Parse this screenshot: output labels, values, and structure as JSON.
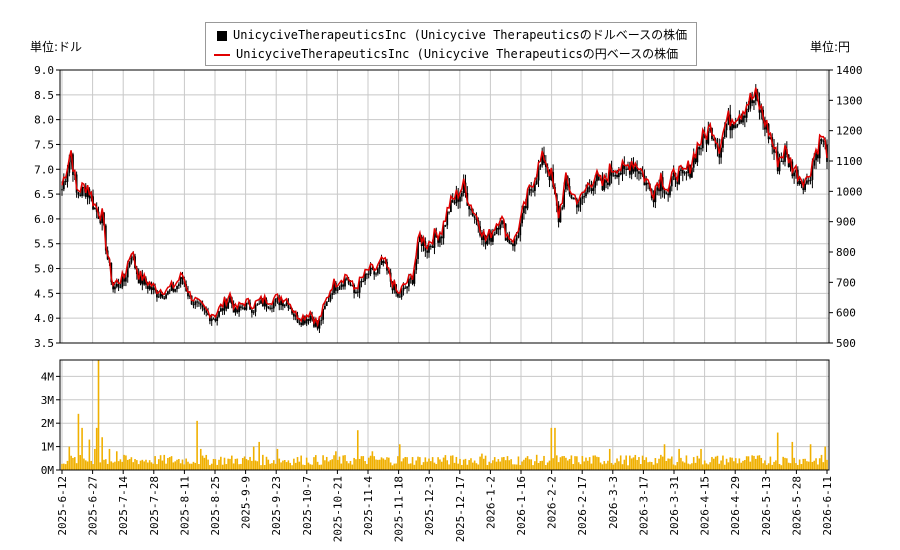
{
  "units": {
    "left": "単位:ドル",
    "right": "単位:円"
  },
  "legend": {
    "usd": "UnicyciveTherapeuticsInc (Unicycive Therapeuticsのドルベースの株価",
    "jpy": "UnicyciveTherapeuticsInc (Unicycive Therapeuticsの円ベースの株価"
  },
  "colors": {
    "candle": "#000000",
    "jpy_line": "#e00000",
    "volume": "#f0b000",
    "grid": "#c8c8c8"
  },
  "chart_data": [
    {
      "type": "line",
      "series": [
        {
          "name": "UnicyciveTherapeuticsInc (Unicycive Therapeuticsのドルベースの株価",
          "axis": "left",
          "style": "candlestick"
        },
        {
          "name": "UnicyciveTherapeuticsInc (Unicycive Therapeuticsの円ベースの株価",
          "axis": "right",
          "style": "line"
        }
      ],
      "x_ticks": [
        "2025-6-12",
        "2025-6-27",
        "2025-7-14",
        "2025-7-28",
        "2025-8-11",
        "2025-8-25",
        "2025-9-9",
        "2025-9-23",
        "2025-10-7",
        "2025-10-21",
        "2025-11-4",
        "2025-11-18",
        "2025-12-3",
        "2025-12-17",
        "2026-1-2",
        "2026-1-16",
        "2026-2-2",
        "2026-2-17",
        "2026-3-3",
        "2026-3-17",
        "2026-3-31",
        "2026-4-15",
        "2026-4-29",
        "2026-5-13",
        "2026-5-28",
        "2026-6-11"
      ],
      "y_left_ticks": [
        "3.5",
        "4.0",
        "4.5",
        "5.0",
        "5.5",
        "6.0",
        "6.5",
        "7.0",
        "7.5",
        "8.0",
        "8.5",
        "9.0"
      ],
      "y_left_range": [
        3.5,
        9.0
      ],
      "y_right_ticks": [
        "500",
        "600",
        "700",
        "800",
        "900",
        "1000",
        "1100",
        "1200",
        "1300",
        "1400"
      ],
      "y_right_range": [
        500,
        1400
      ],
      "anchors_usd": [
        [
          0,
          6.6
        ],
        [
          5,
          7.3
        ],
        [
          8,
          6.5
        ],
        [
          14,
          6.6
        ],
        [
          18,
          6.2
        ],
        [
          22,
          6.0
        ],
        [
          25,
          5.2
        ],
        [
          28,
          4.6
        ],
        [
          34,
          4.75
        ],
        [
          38,
          5.3
        ],
        [
          42,
          4.8
        ],
        [
          47,
          4.65
        ],
        [
          52,
          4.5
        ],
        [
          58,
          4.5
        ],
        [
          62,
          4.6
        ],
        [
          66,
          4.8
        ],
        [
          70,
          4.4
        ],
        [
          75,
          4.2
        ],
        [
          80,
          4.05
        ],
        [
          84,
          4.0
        ],
        [
          88,
          4.2
        ],
        [
          92,
          4.4
        ],
        [
          95,
          4.1
        ],
        [
          100,
          4.25
        ],
        [
          105,
          4.2
        ],
        [
          110,
          4.3
        ],
        [
          115,
          4.3
        ],
        [
          120,
          4.35
        ],
        [
          124,
          4.3
        ],
        [
          128,
          4.0
        ],
        [
          132,
          3.95
        ],
        [
          136,
          4.05
        ],
        [
          140,
          3.8
        ],
        [
          144,
          4.2
        ],
        [
          148,
          4.6
        ],
        [
          152,
          4.7
        ],
        [
          156,
          4.8
        ],
        [
          160,
          4.5
        ],
        [
          164,
          4.7
        ],
        [
          168,
          4.9
        ],
        [
          172,
          4.9
        ],
        [
          176,
          5.1
        ],
        [
          180,
          4.75
        ],
        [
          184,
          4.4
        ],
        [
          188,
          4.6
        ],
        [
          192,
          4.8
        ],
        [
          196,
          5.6
        ],
        [
          200,
          5.4
        ],
        [
          204,
          5.6
        ],
        [
          208,
          5.7
        ],
        [
          212,
          6.2
        ],
        [
          216,
          6.4
        ],
        [
          220,
          6.6
        ],
        [
          224,
          6.2
        ],
        [
          228,
          5.9
        ],
        [
          232,
          5.5
        ],
        [
          236,
          5.7
        ],
        [
          240,
          6.0
        ],
        [
          244,
          5.6
        ],
        [
          248,
          5.5
        ],
        [
          252,
          6.0
        ],
        [
          256,
          6.5
        ],
        [
          260,
          6.9
        ],
        [
          264,
          7.2
        ],
        [
          268,
          6.8
        ],
        [
          272,
          6.0
        ],
        [
          276,
          6.7
        ],
        [
          280,
          6.4
        ],
        [
          284,
          6.3
        ],
        [
          288,
          6.6
        ],
        [
          292,
          6.8
        ],
        [
          296,
          6.6
        ],
        [
          300,
          6.9
        ],
        [
          304,
          7.0
        ],
        [
          308,
          6.9
        ],
        [
          312,
          7.1
        ],
        [
          316,
          7.0
        ],
        [
          320,
          6.7
        ],
        [
          324,
          6.5
        ],
        [
          328,
          6.8
        ],
        [
          332,
          6.5
        ],
        [
          336,
          6.9
        ],
        [
          340,
          6.8
        ],
        [
          344,
          7.0
        ],
        [
          348,
          7.4
        ],
        [
          352,
          7.6
        ],
        [
          356,
          7.8
        ],
        [
          360,
          7.4
        ],
        [
          364,
          7.9
        ],
        [
          368,
          8.0
        ],
        [
          372,
          8.1
        ],
        [
          376,
          8.3
        ],
        [
          380,
          8.4
        ],
        [
          384,
          8.0
        ],
        [
          388,
          7.6
        ],
        [
          392,
          7.1
        ],
        [
          396,
          7.3
        ],
        [
          400,
          7.0
        ],
        [
          404,
          6.8
        ],
        [
          408,
          6.7
        ],
        [
          412,
          7.2
        ],
        [
          416,
          7.6
        ],
        [
          419,
          7.3
        ]
      ],
      "n_days": 420
    },
    {
      "type": "bar",
      "y_ticks": [
        "0M",
        "1M",
        "2M",
        "3M",
        "4M"
      ],
      "y_range": [
        0,
        4.7
      ],
      "x_ticks": [
        "2025-6-12",
        "2025-6-27",
        "2025-7-14",
        "2025-7-28",
        "2025-8-11",
        "2025-8-25",
        "2025-9-9",
        "2025-9-23",
        "2025-10-7",
        "2025-10-21",
        "2025-11-4",
        "2025-11-18",
        "2025-12-3",
        "2025-12-17",
        "2026-1-2",
        "2026-1-16",
        "2026-2-2",
        "2026-2-17",
        "2026-3-3",
        "2026-3-17",
        "2026-3-31",
        "2026-4-15",
        "2026-4-29",
        "2026-5-13",
        "2026-5-28",
        "2026-6-11"
      ],
      "spikes": [
        [
          4,
          1.0
        ],
        [
          9,
          2.4
        ],
        [
          11,
          1.8
        ],
        [
          15,
          1.3
        ],
        [
          18,
          0.9
        ],
        [
          19,
          1.8
        ],
        [
          20,
          4.7
        ],
        [
          22,
          1.4
        ],
        [
          26,
          0.9
        ],
        [
          30,
          0.8
        ],
        [
          74,
          2.1
        ],
        [
          76,
          0.9
        ],
        [
          105,
          1.0
        ],
        [
          108,
          1.2
        ],
        [
          118,
          0.9
        ],
        [
          150,
          0.8
        ],
        [
          162,
          1.7
        ],
        [
          170,
          0.8
        ],
        [
          185,
          1.1
        ],
        [
          230,
          0.7
        ],
        [
          268,
          1.8
        ],
        [
          270,
          1.8
        ],
        [
          300,
          0.9
        ],
        [
          330,
          1.1
        ],
        [
          338,
          0.9
        ],
        [
          350,
          0.9
        ],
        [
          392,
          1.6
        ],
        [
          400,
          1.2
        ],
        [
          410,
          1.1
        ],
        [
          418,
          1.0
        ]
      ]
    }
  ]
}
